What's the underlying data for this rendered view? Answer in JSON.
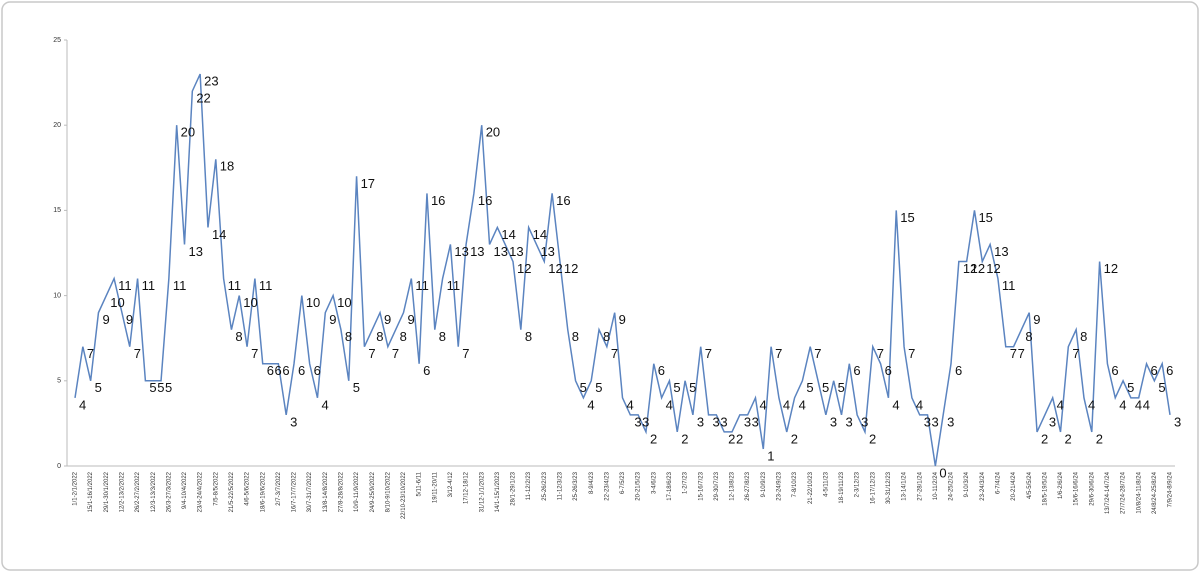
{
  "chart_data": {
    "type": "line",
    "categories": [
      "1/1-2/1/2022",
      null,
      "15/1-16/1/2022",
      null,
      "29/1-30/1/2022",
      null,
      "12/2-13/2/2022",
      null,
      "26/2-27/2/2022",
      null,
      "12/3-13/3/2022",
      null,
      "26/3-27/3/2022",
      null,
      "9/4-10/4/2022",
      null,
      "23/4-24/4/2022",
      null,
      "7/5-8/5/2022",
      null,
      "21/5-22/5/2022",
      null,
      "4/6-5/6/2022",
      null,
      "18/6-19/6/2022",
      null,
      "2/7-3/7/2022",
      null,
      "16/7-17/7/2022",
      null,
      "30/7-31/7/2022",
      null,
      "13/8-14/8/2022",
      null,
      "27/8-28/8/2022",
      null,
      "10/9-11/9/2022",
      null,
      "24/9-25/9/2022",
      null,
      "8/10-9/10/2022",
      null,
      "22/10-23/10/2022",
      null,
      "5/11-6/11",
      null,
      "19/11-20/11",
      null,
      "3/12-4/12",
      null,
      "17/12-18/12",
      null,
      "31/12-1/1/2023",
      null,
      "14/1-15/1/2023",
      null,
      "28/1-29/1/23",
      null,
      "11-12/2/23",
      null,
      "25-26/2/23",
      null,
      "11-12/3/23",
      null,
      "25-26/3/23",
      null,
      "8-9/4/23",
      null,
      "22-23/4/23",
      null,
      "6-7/5/23",
      null,
      "20-21/5/23",
      null,
      "3-4/6/23",
      null,
      "17-18/6/23",
      null,
      "1-2/7/23",
      null,
      "15-16/7/23",
      null,
      "29-30/7/23",
      null,
      "12-13/8/23",
      null,
      "26-27/8/23",
      null,
      "9-10/9/23",
      null,
      "23-24/9/23",
      null,
      "7-8/10/23",
      null,
      "21-22/10/23",
      null,
      "4-5/11/23",
      null,
      "18-19/11/23",
      null,
      "2-3/12/23",
      null,
      "16-17/12/23",
      null,
      "30-31/12/23",
      null,
      "13-14/1/24",
      null,
      "27-28/1/24",
      null,
      "10-11/2/24",
      null,
      "24-25/2/24",
      null,
      "9-10/3/24",
      null,
      "23-24/3/24",
      null,
      "6-7/4/24",
      null,
      "20-21/4/24",
      null,
      "4/5-5/5/24",
      null,
      "18/5-19/5/24",
      null,
      "1/6-2/6/24",
      null,
      "15/6-16/6/24",
      null,
      "29/6-30/6/24",
      null,
      "13/7/24-14/7/24",
      null,
      "27/7/24-28/7/24",
      null,
      "10/8/24-11/8/24",
      null,
      "24/8/24-25/8/24",
      null,
      "7/9/24-8/9/24"
    ],
    "series": [
      {
        "color": "#5b84c0",
        "values": [
          4,
          7,
          5,
          9,
          10,
          11,
          9,
          7,
          11,
          5,
          5,
          5,
          11,
          20,
          13,
          22,
          23,
          14,
          18,
          11,
          8,
          10,
          7,
          11,
          6,
          6,
          6,
          3,
          6,
          10,
          6,
          4,
          9,
          10,
          8,
          5,
          17,
          7,
          8,
          9,
          7,
          8,
          9,
          11,
          6,
          16,
          8,
          11,
          13,
          7,
          13,
          16,
          20,
          13,
          14,
          13,
          12,
          8,
          14,
          13,
          12,
          16,
          12,
          8,
          5,
          4,
          5,
          8,
          7,
          9,
          4,
          3,
          3,
          2,
          6,
          4,
          5,
          2,
          5,
          3,
          7,
          3,
          3,
          2,
          2,
          3,
          3,
          4,
          1,
          7,
          4,
          2,
          4,
          5,
          7,
          5,
          3,
          5,
          3,
          6,
          3,
          2,
          7,
          6,
          4,
          15,
          7,
          4,
          3,
          3,
          0,
          3,
          6,
          12,
          12,
          15,
          12,
          13,
          11,
          7,
          7,
          8,
          9,
          2,
          3,
          4,
          2,
          7,
          8,
          4,
          2,
          12,
          6,
          4,
          5,
          4,
          4,
          6,
          5,
          6,
          3
        ]
      }
    ],
    "ylim": [
      0,
      25
    ],
    "yticks": [
      0,
      5,
      10,
      15,
      20,
      25
    ]
  }
}
